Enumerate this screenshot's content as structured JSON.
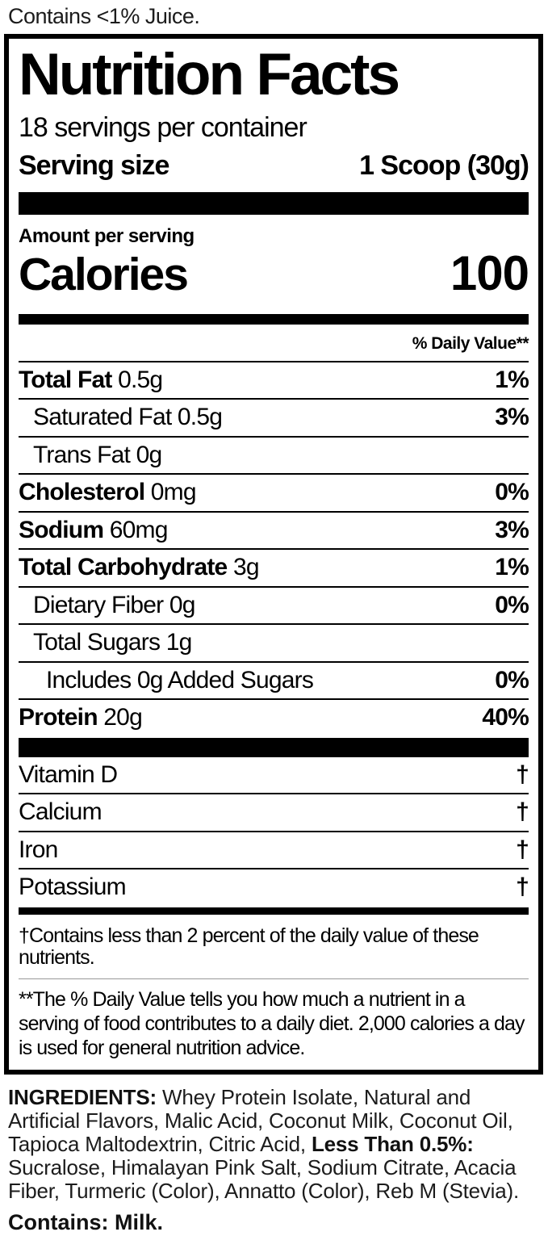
{
  "top_note": "Contains <1% Juice.",
  "label": {
    "title": "Nutrition Facts",
    "servings_per_container": "18 servings per container",
    "serving_size_label": "Serving size",
    "serving_size_value": "1 Scoop (30g)",
    "amount_per_serving": "Amount per serving",
    "calories_label": "Calories",
    "calories_value": "100",
    "daily_value_header": "% Daily Value**",
    "nutrients": [
      {
        "name": "Total Fat",
        "amount": "0.5g",
        "dv": "1%"
      },
      {
        "name": "Saturated Fat 0.5g",
        "amount": "",
        "dv": "3%"
      },
      {
        "name": "Trans Fat 0g",
        "amount": "",
        "dv": ""
      },
      {
        "name": "Cholesterol",
        "amount": "0mg",
        "dv": "0%"
      },
      {
        "name": "Sodium",
        "amount": "60mg",
        "dv": "3%"
      },
      {
        "name": "Total Carbohydrate",
        "amount": "3g",
        "dv": "1%"
      },
      {
        "name": "Dietary Fiber 0g",
        "amount": "",
        "dv": "0%"
      },
      {
        "name": "Total Sugars 1g",
        "amount": "",
        "dv": ""
      },
      {
        "name": "Includes 0g Added Sugars",
        "amount": "",
        "dv": "0%"
      },
      {
        "name": "Protein",
        "amount": "20g",
        "dv": "40%"
      }
    ],
    "micronutrients": [
      {
        "name": "Vitamin D",
        "dv": "†"
      },
      {
        "name": "Calcium",
        "dv": "†"
      },
      {
        "name": "Iron",
        "dv": "†"
      },
      {
        "name": "Potassium",
        "dv": "†"
      }
    ],
    "footnote_dagger": "†Contains less than 2 percent of the daily value of these nutrients.",
    "footnote_daily_value": "**The % Daily Value tells you how much a nutrient in a serving of food contributes to a daily diet. 2,000 calories a day is used for general nutrition advice."
  },
  "ingredients": {
    "label": "INGREDIENTS:",
    "part1": " Whey Protein Isolate, Natural and Artificial Flavors, Malic Acid, Coconut Milk, Coconut Oil, Tapioca Maltodextrin, Citric Acid, ",
    "less_than_label": "Less Than 0.5%:",
    "part2": " Sucralose, Himalayan Pink Salt, Sodium Citrate, Acacia Fiber, Turmeric (Color), Annatto (Color), Reb M (Stevia)."
  },
  "contains_note": "Contains: Milk."
}
